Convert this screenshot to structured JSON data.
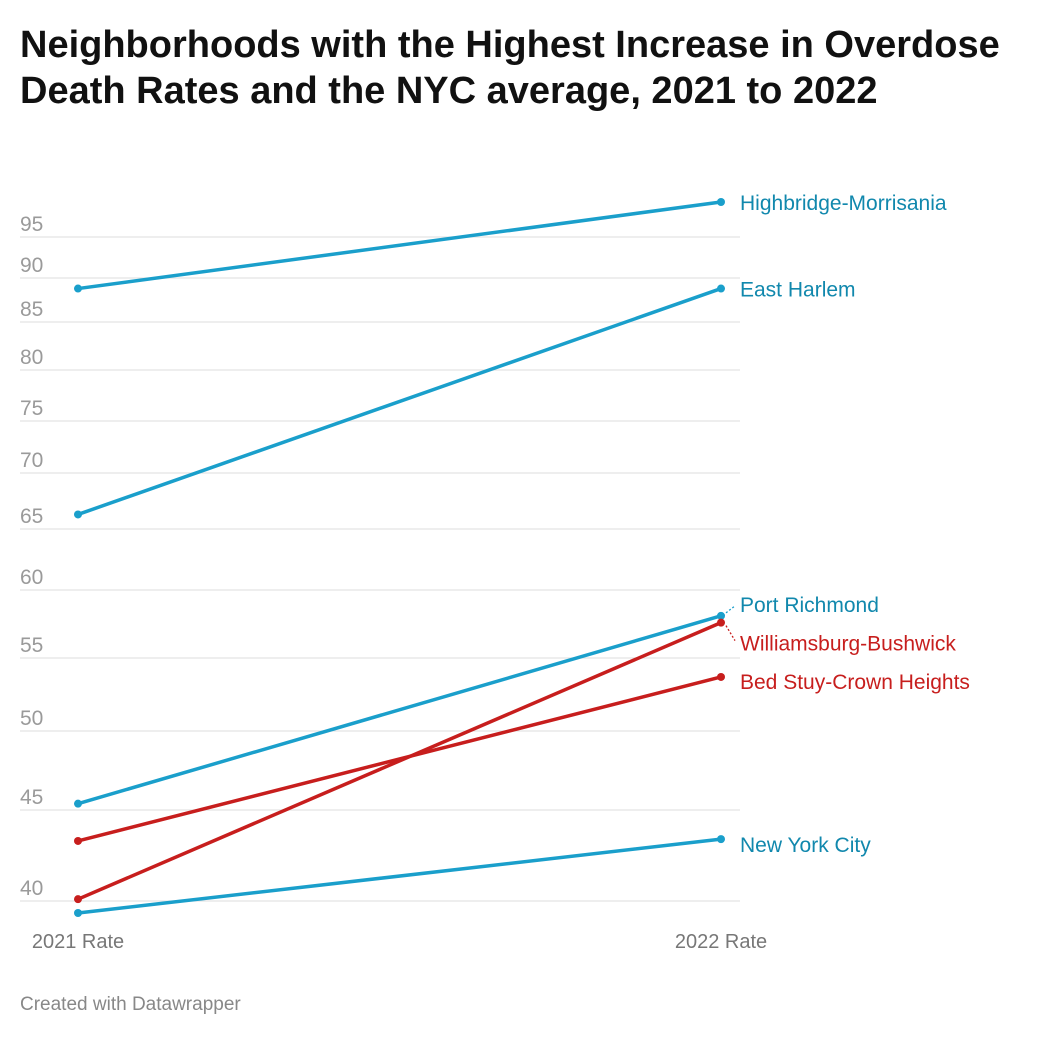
{
  "chart_data": {
    "type": "line",
    "title": "Neighborhoods with the Highest Increase in Overdose Death Rates and the NYC average, 2021 to 2022",
    "categories": [
      "2021 Rate",
      "2022 Rate"
    ],
    "y_ticks": [
      40,
      45,
      50,
      55,
      60,
      65,
      70,
      75,
      80,
      85,
      90,
      95
    ],
    "ylim": [
      39.4,
      98.5
    ],
    "grid": true,
    "series": [
      {
        "name": "Highbridge-Morrisania",
        "values": [
          88.8,
          98.3
        ],
        "color": "#1a9fcb"
      },
      {
        "name": "East Harlem",
        "values": [
          66.3,
          88.8
        ],
        "color": "#1a9fcb"
      },
      {
        "name": "Port Richmond",
        "values": [
          45.4,
          58.1
        ],
        "color": "#1a9fcb"
      },
      {
        "name": "Williamsburg-Bushwick",
        "values": [
          40.1,
          57.6
        ],
        "color": "#c71e1d"
      },
      {
        "name": "Bed Stuy-Crown Heights",
        "values": [
          43.3,
          53.7
        ],
        "color": "#c71e1d"
      },
      {
        "name": "New York City",
        "values": [
          39.4,
          43.4
        ],
        "color": "#1a9fcb"
      }
    ]
  },
  "footer": "Created with Datawrapper"
}
